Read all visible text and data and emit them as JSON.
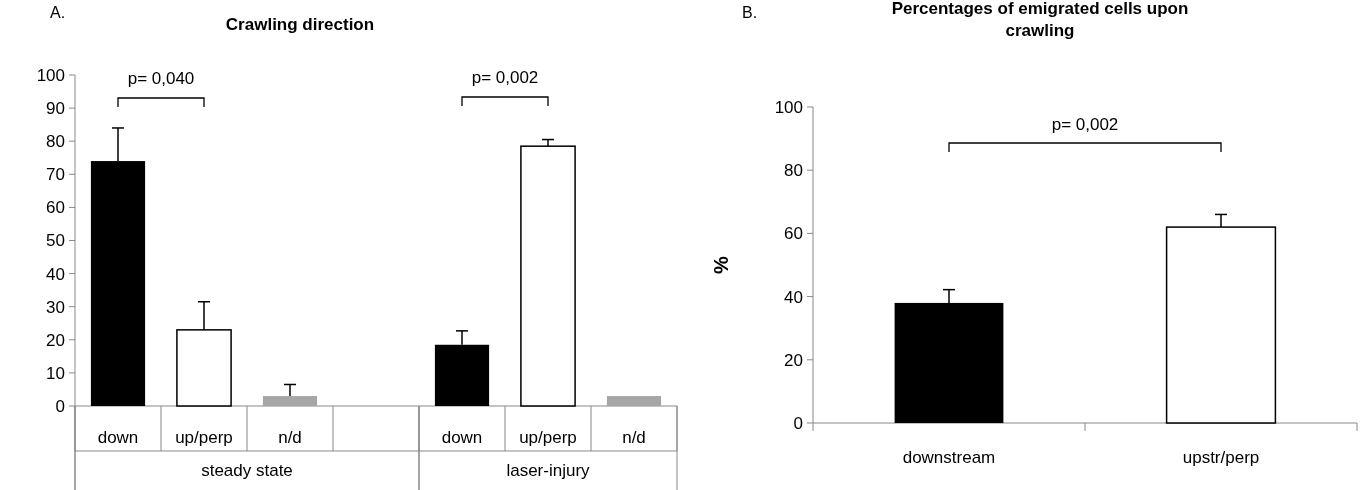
{
  "chart_data": [
    {
      "type": "bar",
      "title": "Crawling direction",
      "categories": [
        "down",
        "up/perp",
        "n/d",
        null,
        "down",
        "up/perp",
        "n/d"
      ],
      "values": [
        74,
        23,
        3,
        null,
        18.5,
        78.5,
        3
      ],
      "colors": [
        "#000000",
        "#ffffff",
        "#a6a6a6",
        null,
        "#000000",
        "#ffffff",
        "#a6a6a6"
      ],
      "errors": [
        10,
        8.5,
        3.5,
        null,
        4.2,
        2,
        null
      ],
      "ylim": [
        0,
        100
      ],
      "yticks": [
        0,
        10,
        20,
        30,
        40,
        50,
        60,
        70,
        80,
        90,
        100
      ],
      "annotations": [
        "A.",
        "p= 0,040",
        "p= 0,002",
        "steady state",
        "laser-injury"
      ]
    },
    {
      "type": "bar",
      "title": "Percentages of emigrated cells upon crawling",
      "ylabel": "%",
      "categories": [
        "downstream",
        "upstr/perp"
      ],
      "values": [
        38,
        62
      ],
      "colors": [
        "#000000",
        "#ffffff"
      ],
      "errors": [
        4.2,
        4
      ],
      "ylim": [
        0,
        100
      ],
      "yticks": [
        0,
        20,
        40,
        60,
        80,
        100
      ],
      "annotations": [
        "B.",
        "p= 0,002"
      ]
    }
  ]
}
